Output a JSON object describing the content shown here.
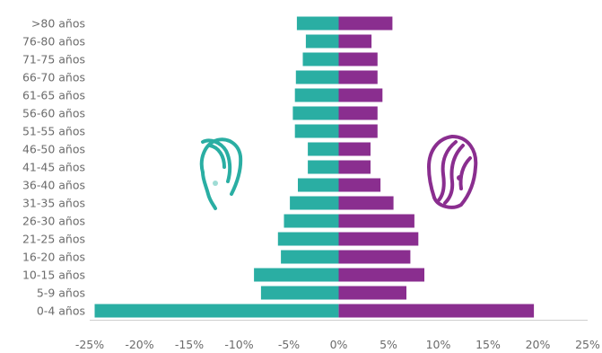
{
  "chart_data": {
    "type": "bar",
    "orientation": "horizontal-diverging",
    "categories": [
      ">80 años",
      "76-80 años",
      "71-75 años",
      "66-70 años",
      "61-65 años",
      "56-60 años",
      "51-55 años",
      "46-50 años",
      "41-45 años",
      "36-40 años",
      "31-35 años",
      "26-30 años",
      "21-25 años",
      "16-20 años",
      "10-15 años",
      "5-9 años",
      "0-4 años"
    ],
    "series": [
      {
        "values": [
          -4.2,
          -3.3,
          -3.6,
          -4.3,
          -4.4,
          -4.6,
          -4.4,
          -3.1,
          -3.1,
          -4.1,
          -4.9,
          -5.5,
          -6.1,
          -5.8,
          -8.5,
          -7.8,
          -24.5
        ],
        "color": "#2aaea3"
      },
      {
        "values": [
          5.4,
          3.3,
          3.9,
          3.9,
          4.4,
          3.9,
          3.9,
          3.2,
          3.2,
          4.2,
          5.5,
          7.6,
          8.0,
          7.2,
          8.6,
          6.8,
          19.6
        ],
        "color": "#8a2e8f"
      }
    ],
    "xlim": [
      -25,
      25
    ],
    "xticks": [
      "-25%",
      "-20%",
      "-15%",
      "-10%",
      "-5%",
      "0%",
      "5%",
      "10%",
      "15%",
      "20%",
      "25%"
    ],
    "grid": false,
    "legend": "none",
    "icons": [
      "male-head-icon",
      "female-head-icon"
    ]
  }
}
